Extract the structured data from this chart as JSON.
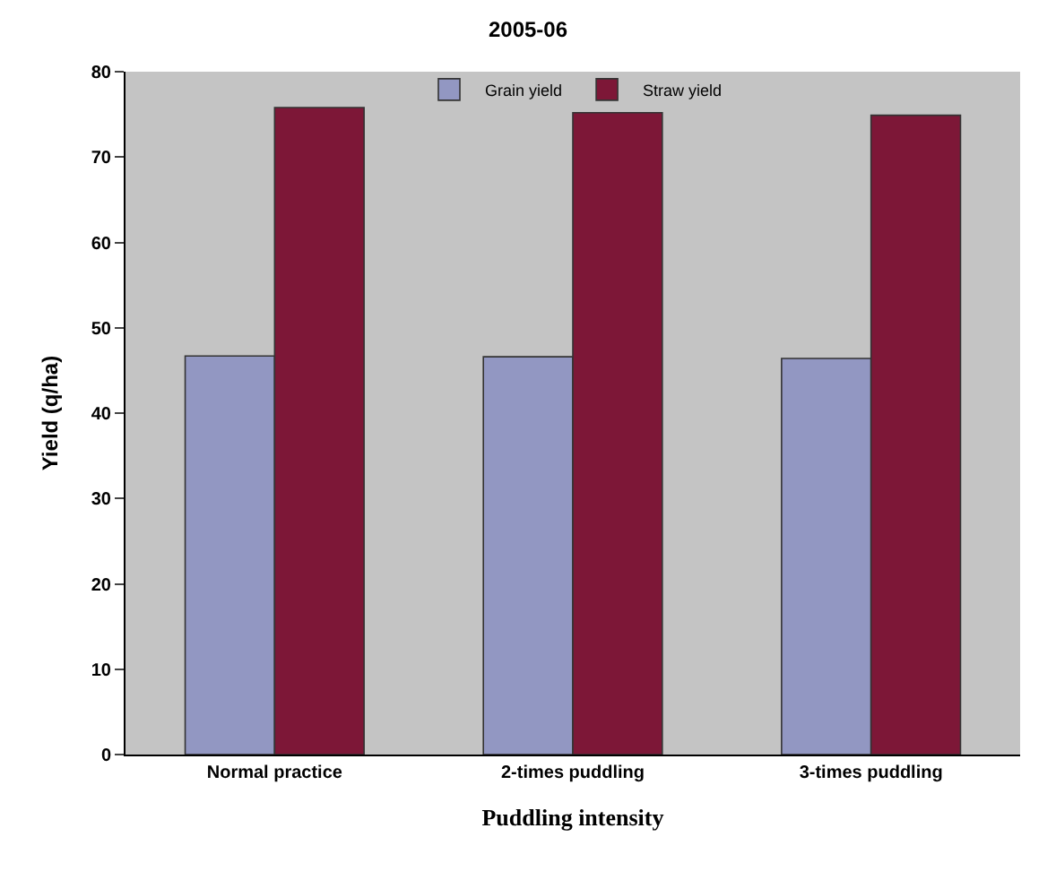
{
  "chart_data": {
    "type": "bar",
    "title": "2005-06",
    "xlabel": "Puddling intensity",
    "ylabel": "Yield (q/ha)",
    "categories": [
      "Normal practice",
      "2-times puddling",
      "3-times puddling"
    ],
    "series": [
      {
        "name": "Grain yield",
        "color": "#9297c2",
        "values": [
          46.7,
          46.6,
          46.4
        ]
      },
      {
        "name": "Straw yield",
        "color": "#7d1737",
        "values": [
          75.8,
          75.2,
          74.9
        ]
      }
    ],
    "ylim": [
      0,
      80
    ],
    "yticks": [
      0,
      10,
      20,
      30,
      40,
      50,
      60,
      70,
      80
    ],
    "grid": false,
    "legend": "top"
  }
}
